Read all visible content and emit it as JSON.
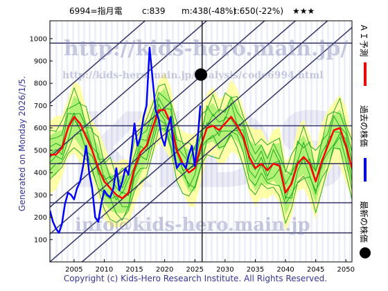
{
  "header": {
    "code_name": "6994=指月電",
    "current": "c:839",
    "mid": "m:438(-48%)",
    "target": "t:650(-22%)",
    "stars": "★★★"
  },
  "side_text": "Generated on Monday 2026/1/5.",
  "footer": "Copyright (c) Kids-Hero Research Institute. All Rights Reserved.",
  "watermarks": {
    "url": "http://kids-hero.main.jp/",
    "analysis_url": "http://kids-hero.main.jp/analysis/code6994.html",
    "email": "info@kids-hero.main.jp",
    "big_letters": "KIDS"
  },
  "legend": {
    "ai_forecast": "ＡＩ予測",
    "past_price": "過去の株価",
    "latest_price": "最新の株価"
  },
  "colors": {
    "forecast": "#ff0000",
    "past": "#0000ff",
    "latest": "#000000",
    "band_outer": "#ffff99",
    "band_inner": "#99ee66",
    "band_lines": "#22aa22",
    "guide_lines": "#333366"
  },
  "chart_data": {
    "type": "line",
    "xlim": [
      2001,
      2051
    ],
    "ylim": [
      0,
      1080
    ],
    "xticks": [
      2005,
      2010,
      2015,
      2020,
      2025,
      2030,
      2035,
      2040,
      2045,
      2050
    ],
    "yticks": [
      100,
      200,
      300,
      400,
      500,
      600,
      700,
      800,
      900,
      1000
    ],
    "horizontal_levels": [
      980,
      610,
      440,
      265,
      130
    ],
    "trend_channel": {
      "slope_per_year": 23.5,
      "intercepts_at_2001": [
        710,
        470,
        245,
        125,
        0,
        -125
      ]
    },
    "current_marker": {
      "x": 2026.0,
      "y": 839
    },
    "now_line_x": 2026.2,
    "series": [
      {
        "name": "ＡＩ予測",
        "x": [
          2001,
          2002,
          2003,
          2004,
          2005,
          2006,
          2007,
          2008,
          2009,
          2010,
          2011,
          2012,
          2013,
          2014,
          2015,
          2016,
          2017,
          2018,
          2019,
          2020,
          2021,
          2022,
          2023,
          2024,
          2025,
          2026,
          2027,
          2028,
          2029,
          2030,
          2031,
          2032,
          2033,
          2034,
          2035,
          2036,
          2037,
          2038,
          2039,
          2040,
          2041,
          2042,
          2043,
          2044,
          2045,
          2046,
          2047,
          2048,
          2049,
          2050,
          2051
        ],
        "values": [
          480,
          480,
          510,
          600,
          650,
          620,
          560,
          500,
          420,
          360,
          330,
          300,
          285,
          310,
          420,
          490,
          520,
          600,
          680,
          680,
          620,
          500,
          440,
          400,
          420,
          520,
          600,
          610,
          590,
          620,
          650,
          610,
          560,
          470,
          420,
          440,
          410,
          440,
          430,
          310,
          350,
          440,
          470,
          440,
          360,
          450,
          520,
          590,
          600,
          520,
          420
        ]
      },
      {
        "name": "過去の株価",
        "x": [
          2001,
          2001.5,
          2002,
          2002.5,
          2003,
          2003.5,
          2004,
          2004.5,
          2005,
          2005.5,
          2006,
          2006.5,
          2007,
          2007.5,
          2008,
          2008.5,
          2009,
          2009.5,
          2010,
          2010.5,
          2011,
          2011.5,
          2012,
          2012.5,
          2013,
          2013.5,
          2014,
          2014.5,
          2015,
          2015.5,
          2016,
          2016.5,
          2017,
          2017.5,
          2018,
          2018.5,
          2019,
          2019.5,
          2020,
          2020.5,
          2021,
          2021.5,
          2022,
          2022.5,
          2023,
          2023.5,
          2024,
          2024.5,
          2025,
          2025.5,
          2025.9
        ],
        "values": [
          230,
          180,
          150,
          130,
          170,
          260,
          310,
          300,
          280,
          330,
          360,
          430,
          520,
          400,
          330,
          200,
          180,
          260,
          320,
          300,
          290,
          330,
          420,
          320,
          360,
          420,
          390,
          500,
          620,
          520,
          560,
          650,
          700,
          960,
          820,
          680,
          640,
          560,
          520,
          600,
          650,
          500,
          420,
          440,
          440,
          420,
          480,
          520,
          430,
          560,
          700
        ]
      }
    ]
  }
}
